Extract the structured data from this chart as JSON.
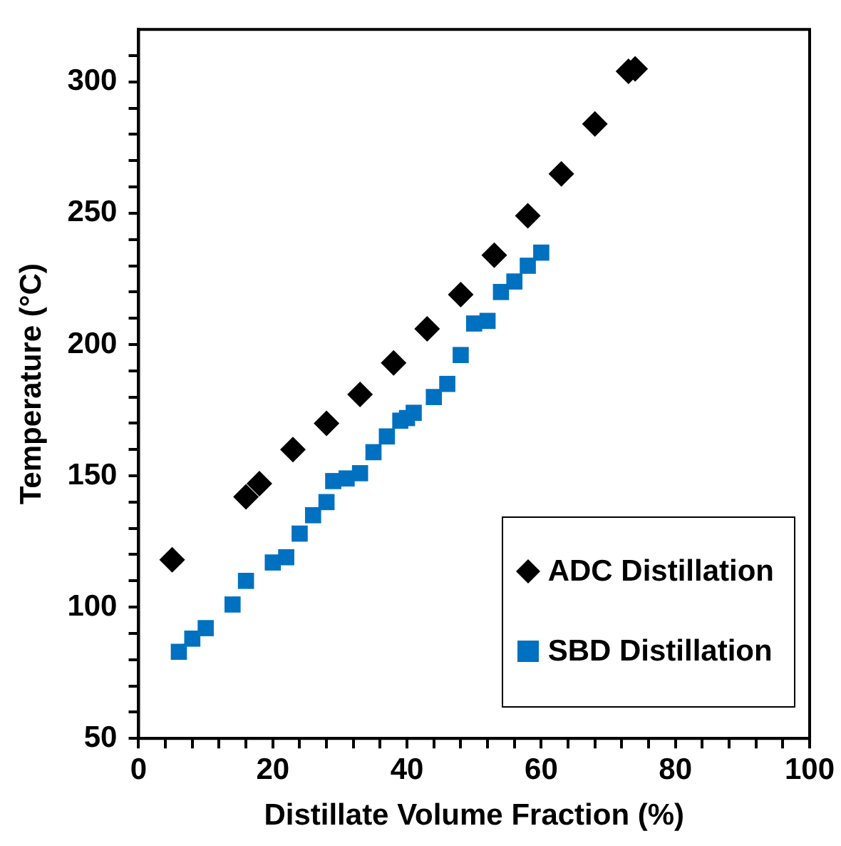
{
  "chart_data": {
    "type": "scatter",
    "xlabel": "Distillate Volume Fraction (%)",
    "ylabel": "Temperature (°C)",
    "xlim": [
      0,
      100
    ],
    "ylim": [
      50,
      320
    ],
    "xticks": [
      0,
      {
        "value": 4,
        "label": null
      },
      {
        "value": 8,
        "label": null
      },
      {
        "value": 12,
        "label": null
      },
      {
        "value": 16,
        "label": null
      },
      20,
      {
        "value": 24,
        "label": null
      },
      {
        "value": 28,
        "label": null
      },
      {
        "value": 32,
        "label": null
      },
      {
        "value": 36,
        "label": null
      },
      40,
      {
        "value": 44,
        "label": null
      },
      {
        "value": 48,
        "label": null
      },
      {
        "value": 52,
        "label": null
      },
      {
        "value": 56,
        "label": null
      },
      60,
      {
        "value": 64,
        "label": null
      },
      {
        "value": 68,
        "label": null
      },
      {
        "value": 72,
        "label": null
      },
      {
        "value": 76,
        "label": null
      },
      80,
      {
        "value": 84,
        "label": null
      },
      {
        "value": 88,
        "label": null
      },
      {
        "value": 92,
        "label": null
      },
      {
        "value": 96,
        "label": null
      },
      100
    ],
    "yticks": [
      50,
      {
        "value": 60,
        "label": null
      },
      {
        "value": 70,
        "label": null
      },
      {
        "value": 80,
        "label": null
      },
      {
        "value": 90,
        "label": null
      },
      100,
      {
        "value": 110,
        "label": null
      },
      {
        "value": 120,
        "label": null
      },
      {
        "value": 130,
        "label": null
      },
      {
        "value": 140,
        "label": null
      },
      150,
      {
        "value": 160,
        "label": null
      },
      {
        "value": 170,
        "label": null
      },
      {
        "value": 180,
        "label": null
      },
      {
        "value": 190,
        "label": null
      },
      200,
      {
        "value": 210,
        "label": null
      },
      {
        "value": 220,
        "label": null
      },
      {
        "value": 230,
        "label": null
      },
      {
        "value": 240,
        "label": null
      },
      250,
      {
        "value": 260,
        "label": null
      },
      {
        "value": 270,
        "label": null
      },
      {
        "value": 280,
        "label": null
      },
      {
        "value": 290,
        "label": null
      },
      300,
      {
        "value": 310,
        "label": null
      }
    ],
    "grid": false,
    "legend": "bottom right",
    "series": [
      {
        "name": "ADC Distillation",
        "color": "#000000",
        "marker": "diamond",
        "x": [
          5,
          16,
          18,
          23,
          28,
          33,
          38,
          43,
          48,
          53,
          58,
          63,
          68,
          73,
          74
        ],
        "values": [
          118,
          142,
          147,
          160,
          170,
          181,
          193,
          206,
          219,
          234,
          249,
          265,
          284,
          304,
          305
        ]
      },
      {
        "name": "SBD Distillation",
        "color": "#0070c0",
        "marker": "square",
        "x": [
          6,
          8,
          10,
          14,
          16,
          20,
          22,
          24,
          26,
          28,
          29,
          31,
          33,
          35,
          37,
          39,
          40,
          41,
          44,
          46,
          48,
          50,
          52,
          54,
          56,
          58,
          60
        ],
        "values": [
          83,
          88,
          92,
          101,
          110,
          117,
          119,
          128,
          135,
          140,
          148,
          149,
          151,
          159,
          165,
          171,
          172,
          174,
          180,
          185,
          196,
          208,
          209,
          220,
          224,
          230,
          235
        ]
      }
    ]
  }
}
